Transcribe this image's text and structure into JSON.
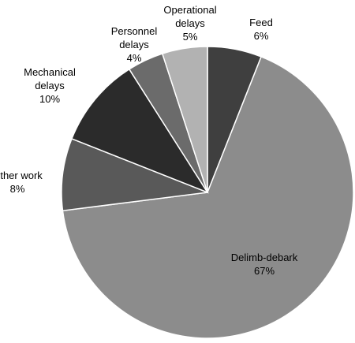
{
  "chart_data": {
    "type": "pie",
    "title": "",
    "legend": "none",
    "slices": [
      {
        "label_lines": [
          "Feed"
        ],
        "pct": "6%",
        "value": 6,
        "color": "#3f3f3f"
      },
      {
        "label_lines": [
          "Delimb-debark"
        ],
        "pct": "67%",
        "value": 67,
        "color": "#8c8c8c"
      },
      {
        "label_lines": [
          "Other work"
        ],
        "pct": "8%",
        "value": 8,
        "color": "#595959"
      },
      {
        "label_lines": [
          "Mechanical",
          "delays"
        ],
        "pct": "10%",
        "value": 10,
        "color": "#2b2b2b"
      },
      {
        "label_lines": [
          "Personnel",
          "delays"
        ],
        "pct": "4%",
        "value": 4,
        "color": "#6b6b6b"
      },
      {
        "label_lines": [
          "Operational",
          "delays"
        ],
        "pct": "5%",
        "value": 5,
        "color": "#b2b2b2"
      }
    ]
  }
}
